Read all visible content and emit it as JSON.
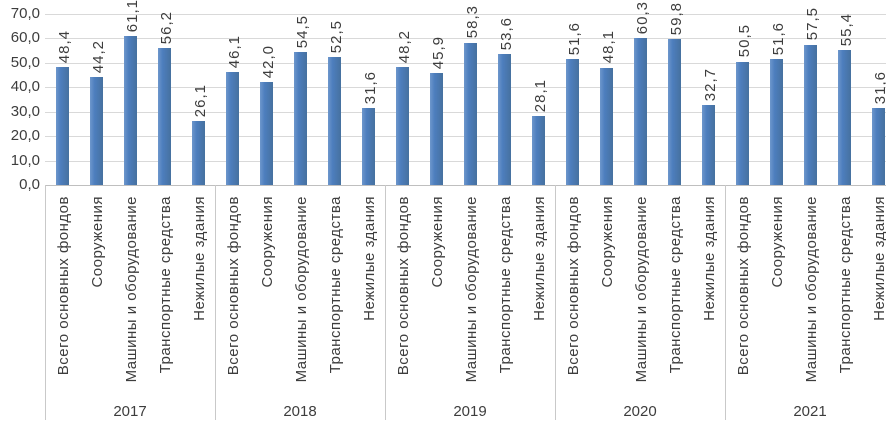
{
  "chart_data": {
    "type": "bar",
    "title": "",
    "xlabel": "",
    "ylabel": "",
    "ylim": [
      0,
      70
    ],
    "ytick_step": 10,
    "ytick_labels": [
      "0,0",
      "10,0",
      "20,0",
      "30,0",
      "40,0",
      "50,0",
      "60,0",
      "70,0"
    ],
    "grid": true,
    "legend_position": "none",
    "bar_color": "#4d7ebe",
    "categories": [
      "Всего основных фондов",
      "Сооружения",
      "Машины и оборудование",
      "Транспортные средства",
      "Нежилые здания"
    ],
    "groups": [
      {
        "year": "2017",
        "values": [
          48.4,
          44.2,
          61.1,
          56.2,
          26.1
        ],
        "value_labels": [
          "48,4",
          "44,2",
          "61,1",
          "56,2",
          "26,1"
        ]
      },
      {
        "year": "2018",
        "values": [
          46.1,
          42.0,
          54.5,
          52.5,
          31.6
        ],
        "value_labels": [
          "46,1",
          "42,0",
          "54,5",
          "52,5",
          "31,6"
        ]
      },
      {
        "year": "2019",
        "values": [
          48.2,
          45.9,
          58.3,
          53.6,
          28.1
        ],
        "value_labels": [
          "48,2",
          "45,9",
          "58,3",
          "53,6",
          "28,1"
        ]
      },
      {
        "year": "2020",
        "values": [
          51.6,
          48.1,
          60.3,
          59.8,
          32.7
        ],
        "value_labels": [
          "51,6",
          "48,1",
          "60,3",
          "59,8",
          "32,7"
        ]
      },
      {
        "year": "2021",
        "values": [
          50.5,
          51.6,
          57.5,
          55.4,
          31.6
        ],
        "value_labels": [
          "50,5",
          "51,6",
          "57,5",
          "55,4",
          "31,6"
        ]
      }
    ]
  },
  "colors": {
    "bar": "#4d7ebe",
    "gridline": "#d9d9d9",
    "axis_line": "#bfbfbf",
    "divider": "#c9c9c9",
    "text": "#3d3d3d",
    "background": "#ffffff"
  }
}
